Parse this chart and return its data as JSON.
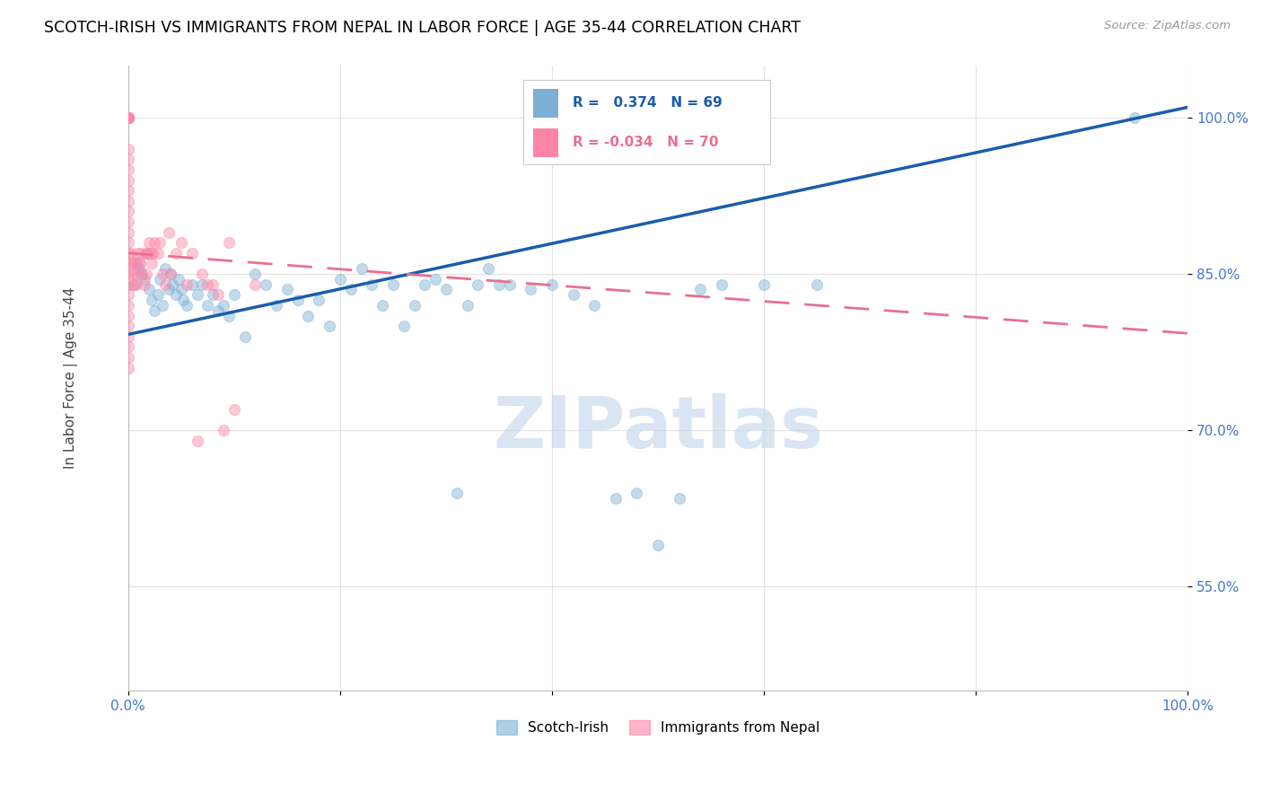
{
  "title": "SCOTCH-IRISH VS IMMIGRANTS FROM NEPAL IN LABOR FORCE | AGE 35-44 CORRELATION CHART",
  "source_text": "Source: ZipAtlas.com",
  "ylabel": "In Labor Force | Age 35-44",
  "xlim": [
    0,
    1.0
  ],
  "ylim": [
    0.45,
    1.05
  ],
  "blue_R": 0.374,
  "blue_N": 69,
  "pink_R": -0.034,
  "pink_N": 70,
  "blue_color": "#7BAFD4",
  "pink_color": "#FF85A8",
  "blue_trend_color": "#1A5DAB",
  "pink_trend_color": "#E87090",
  "watermark_text": "ZIPatlas",
  "legend_label_blue": "Scotch-Irish",
  "legend_label_pink": "Immigrants from Nepal",
  "scatter_alpha": 0.45,
  "scatter_size": 75,
  "blue_x": [
    0.005,
    0.008,
    0.01,
    0.012,
    0.015,
    0.018,
    0.02,
    0.022,
    0.025,
    0.028,
    0.03,
    0.032,
    0.035,
    0.038,
    0.04,
    0.042,
    0.045,
    0.048,
    0.05,
    0.052,
    0.055,
    0.06,
    0.065,
    0.07,
    0.075,
    0.08,
    0.085,
    0.09,
    0.095,
    0.1,
    0.11,
    0.12,
    0.13,
    0.14,
    0.15,
    0.16,
    0.17,
    0.18,
    0.19,
    0.2,
    0.21,
    0.22,
    0.23,
    0.24,
    0.25,
    0.26,
    0.27,
    0.28,
    0.29,
    0.3,
    0.31,
    0.32,
    0.33,
    0.34,
    0.35,
    0.36,
    0.38,
    0.4,
    0.42,
    0.44,
    0.46,
    0.48,
    0.5,
    0.52,
    0.54,
    0.56,
    0.6,
    0.65,
    0.95
  ],
  "blue_y": [
    0.84,
    0.86,
    0.855,
    0.85,
    0.845,
    0.87,
    0.835,
    0.825,
    0.815,
    0.83,
    0.845,
    0.82,
    0.855,
    0.835,
    0.85,
    0.84,
    0.83,
    0.845,
    0.835,
    0.825,
    0.82,
    0.84,
    0.83,
    0.84,
    0.82,
    0.83,
    0.815,
    0.82,
    0.81,
    0.83,
    0.79,
    0.85,
    0.84,
    0.82,
    0.835,
    0.825,
    0.81,
    0.825,
    0.8,
    0.845,
    0.835,
    0.855,
    0.84,
    0.82,
    0.84,
    0.8,
    0.82,
    0.84,
    0.845,
    0.835,
    0.64,
    0.82,
    0.84,
    0.855,
    0.84,
    0.84,
    0.835,
    0.84,
    0.83,
    0.82,
    0.635,
    0.64,
    0.59,
    0.635,
    0.835,
    0.84,
    0.84,
    0.84,
    1.0
  ],
  "pink_x": [
    0.0,
    0.0,
    0.0,
    0.0,
    0.0,
    0.0,
    0.0,
    0.0,
    0.0,
    0.0,
    0.0,
    0.0,
    0.0,
    0.0,
    0.0,
    0.0,
    0.0,
    0.0,
    0.0,
    0.0,
    0.0,
    0.0,
    0.0,
    0.0,
    0.0,
    0.0,
    0.0,
    0.0,
    0.0,
    0.0,
    0.002,
    0.003,
    0.004,
    0.005,
    0.006,
    0.007,
    0.008,
    0.009,
    0.01,
    0.011,
    0.012,
    0.013,
    0.015,
    0.016,
    0.017,
    0.018,
    0.02,
    0.021,
    0.022,
    0.023,
    0.025,
    0.028,
    0.03,
    0.032,
    0.035,
    0.038,
    0.04,
    0.045,
    0.05,
    0.055,
    0.06,
    0.065,
    0.07,
    0.075,
    0.08,
    0.085,
    0.09,
    0.095,
    0.1,
    0.12
  ],
  "pink_y": [
    1.0,
    1.0,
    1.0,
    1.0,
    1.0,
    1.0,
    1.0,
    1.0,
    0.97,
    0.96,
    0.95,
    0.94,
    0.93,
    0.92,
    0.91,
    0.9,
    0.89,
    0.88,
    0.87,
    0.86,
    0.85,
    0.84,
    0.83,
    0.82,
    0.81,
    0.8,
    0.79,
    0.78,
    0.77,
    0.76,
    0.87,
    0.86,
    0.85,
    0.84,
    0.86,
    0.85,
    0.84,
    0.87,
    0.86,
    0.86,
    0.87,
    0.85,
    0.84,
    0.87,
    0.85,
    0.87,
    0.88,
    0.87,
    0.86,
    0.87,
    0.88,
    0.87,
    0.88,
    0.85,
    0.84,
    0.89,
    0.85,
    0.87,
    0.88,
    0.84,
    0.87,
    0.69,
    0.85,
    0.84,
    0.84,
    0.83,
    0.7,
    0.88,
    0.72,
    0.84
  ],
  "blue_trend_x": [
    0.0,
    1.0
  ],
  "blue_trend_y": [
    0.792,
    1.01
  ],
  "pink_trend_x": [
    0.0,
    1.0
  ],
  "pink_trend_y": [
    0.87,
    0.793
  ]
}
